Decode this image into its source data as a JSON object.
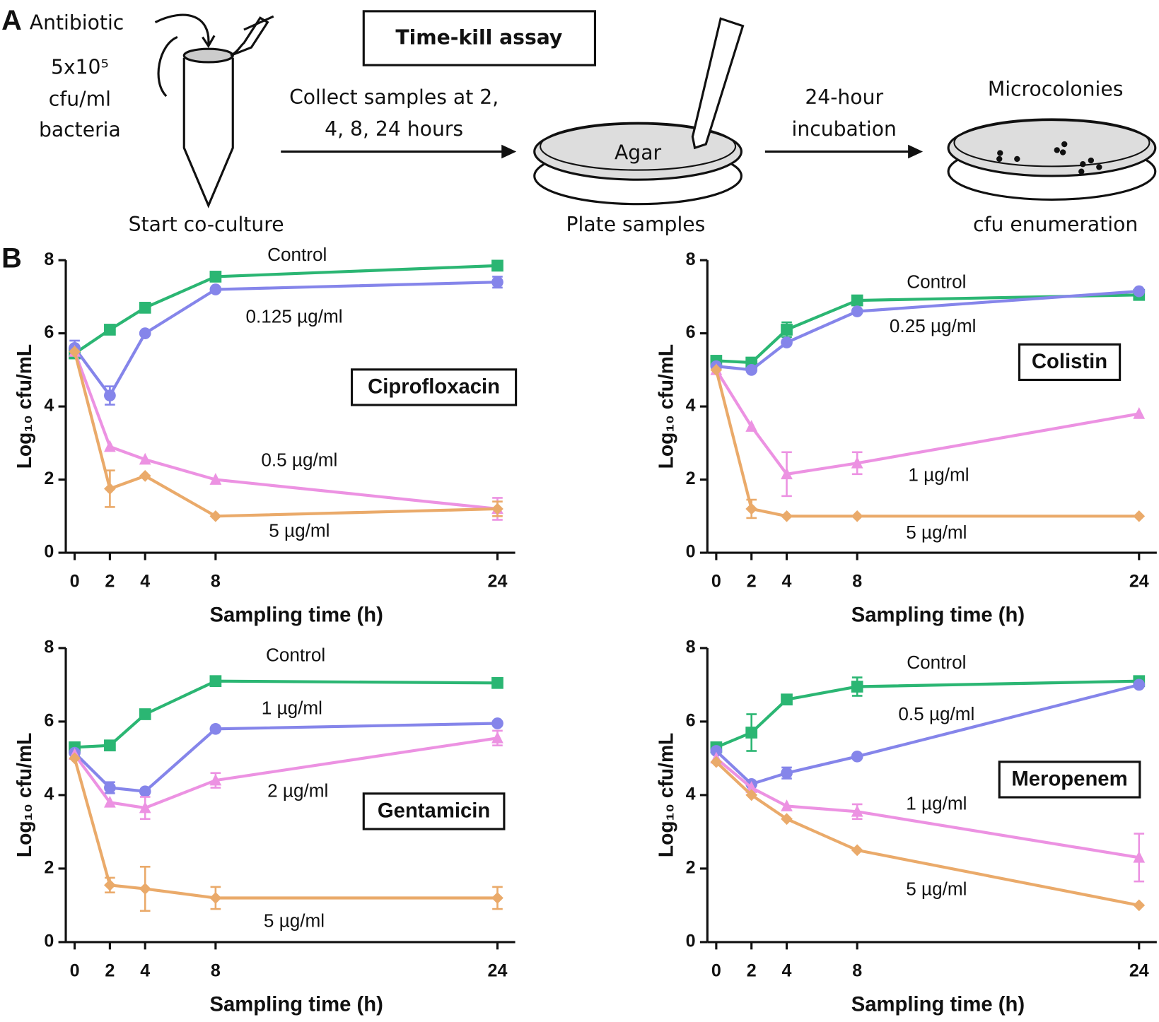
{
  "panel_a": {
    "label": "A",
    "antibiotic": "Antibiotic",
    "inoculum": [
      "5x10⁵",
      "cfu/ml",
      "bacteria"
    ],
    "box_title": "Time-kill assay",
    "step1": [
      "Collect samples at 2,",
      "4, 8, 24 hours"
    ],
    "agar": "Agar",
    "step2": [
      "24-hour",
      "incubation"
    ],
    "microcolonies": "Microcolonies",
    "captions": [
      "Start co-culture",
      "Plate samples",
      "cfu enumeration"
    ]
  },
  "panel_b": {
    "label": "B"
  },
  "chart_data": [
    {
      "type": "line",
      "annotation": "Ciprofloxacin",
      "xlabel": "Sampling time (h)",
      "ylabel": "Log₁₀ cfu/mL",
      "x": [
        0,
        2,
        4,
        8,
        24
      ],
      "xlim": [
        0,
        24
      ],
      "xticks": [
        0,
        2,
        4,
        8,
        24
      ],
      "ylim": [
        0,
        8
      ],
      "yticks": [
        0,
        2,
        4,
        6,
        8
      ],
      "series": [
        {
          "name": "Control",
          "color": "#2bb673",
          "marker": "square",
          "values": [
            5.45,
            6.1,
            6.7,
            7.55,
            7.85
          ],
          "errors": [
            null,
            null,
            null,
            null,
            null
          ]
        },
        {
          "name": "0.125 µg/ml",
          "color": "#8585ea",
          "marker": "circle",
          "values": [
            5.6,
            4.3,
            6.0,
            7.2,
            7.4
          ],
          "errors": [
            0.2,
            0.25,
            null,
            null,
            0.15
          ]
        },
        {
          "name": "0.5 µg/ml",
          "color": "#ec92e2",
          "marker": "triangle",
          "values": [
            5.5,
            2.9,
            2.55,
            2.0,
            1.2
          ],
          "errors": [
            null,
            null,
            null,
            null,
            0.3
          ]
        },
        {
          "name": "5 µg/ml",
          "color": "#eaaa6a",
          "marker": "diamond",
          "values": [
            5.5,
            1.75,
            2.1,
            1.0,
            1.2
          ],
          "errors": [
            null,
            0.5,
            null,
            null,
            0.2
          ]
        }
      ]
    },
    {
      "type": "line",
      "annotation": "Colistin",
      "xlabel": "Sampling time (h)",
      "ylabel": "Log₁₀ cfu/mL",
      "x": [
        0,
        2,
        4,
        8,
        24
      ],
      "xlim": [
        0,
        24
      ],
      "xticks": [
        0,
        2,
        4,
        8,
        24
      ],
      "ylim": [
        0,
        8
      ],
      "yticks": [
        0,
        2,
        4,
        6,
        8
      ],
      "series": [
        {
          "name": "Control",
          "color": "#2bb673",
          "marker": "square",
          "values": [
            5.25,
            5.2,
            6.1,
            6.9,
            7.05
          ],
          "errors": [
            null,
            null,
            0.2,
            null,
            null
          ]
        },
        {
          "name": "0.25 µg/ml",
          "color": "#8585ea",
          "marker": "circle",
          "values": [
            5.1,
            5.0,
            5.75,
            6.6,
            7.15
          ],
          "errors": [
            null,
            null,
            null,
            null,
            null
          ]
        },
        {
          "name": "1 µg/ml",
          "color": "#ec92e2",
          "marker": "triangle",
          "values": [
            5.0,
            3.45,
            2.15,
            2.45,
            3.8
          ],
          "errors": [
            null,
            null,
            0.6,
            0.3,
            null
          ]
        },
        {
          "name": "5 µg/ml",
          "color": "#eaaa6a",
          "marker": "diamond",
          "values": [
            5.0,
            1.2,
            1.0,
            1.0,
            1.0
          ],
          "errors": [
            null,
            0.25,
            null,
            null,
            null
          ]
        }
      ]
    },
    {
      "type": "line",
      "annotation": "Gentamicin",
      "xlabel": "Sampling time (h)",
      "ylabel": "Log₁₀ cfu/mL",
      "x": [
        0,
        2,
        4,
        8,
        24
      ],
      "xlim": [
        0,
        24
      ],
      "xticks": [
        0,
        2,
        4,
        8,
        24
      ],
      "ylim": [
        0,
        8
      ],
      "yticks": [
        0,
        2,
        4,
        6,
        8
      ],
      "series": [
        {
          "name": "Control",
          "color": "#2bb673",
          "marker": "square",
          "values": [
            5.3,
            5.35,
            6.2,
            7.1,
            7.05
          ],
          "errors": [
            null,
            null,
            null,
            null,
            null
          ]
        },
        {
          "name": "1 µg/ml",
          "color": "#8585ea",
          "marker": "circle",
          "values": [
            5.15,
            4.2,
            4.1,
            5.8,
            5.95
          ],
          "errors": [
            null,
            0.15,
            null,
            null,
            null
          ]
        },
        {
          "name": "2 µg/ml",
          "color": "#ec92e2",
          "marker": "triangle",
          "values": [
            5.1,
            3.8,
            3.65,
            4.4,
            5.55
          ],
          "errors": [
            null,
            null,
            0.3,
            0.2,
            0.2
          ]
        },
        {
          "name": "5 µg/ml",
          "color": "#eaaa6a",
          "marker": "diamond",
          "values": [
            5.0,
            1.55,
            1.45,
            1.2,
            1.2
          ],
          "errors": [
            null,
            0.2,
            0.6,
            0.3,
            0.3
          ]
        }
      ]
    },
    {
      "type": "line",
      "annotation": "Meropenem",
      "xlabel": "Sampling time (h)",
      "ylabel": "Log₁₀ cfu/mL",
      "x": [
        0,
        2,
        4,
        8,
        24
      ],
      "xlim": [
        0,
        24
      ],
      "xticks": [
        0,
        2,
        4,
        8,
        24
      ],
      "ylim": [
        0,
        8
      ],
      "yticks": [
        0,
        2,
        4,
        6,
        8
      ],
      "series": [
        {
          "name": "Control",
          "color": "#2bb673",
          "marker": "square",
          "values": [
            5.3,
            5.7,
            6.6,
            6.95,
            7.1
          ],
          "errors": [
            null,
            0.5,
            null,
            0.25,
            null
          ]
        },
        {
          "name": "0.5 µg/ml",
          "color": "#8585ea",
          "marker": "circle",
          "values": [
            5.2,
            4.3,
            4.6,
            5.05,
            7.0
          ],
          "errors": [
            null,
            null,
            0.15,
            null,
            null
          ]
        },
        {
          "name": "1 µg/ml",
          "color": "#ec92e2",
          "marker": "triangle",
          "values": [
            5.0,
            4.2,
            3.7,
            3.55,
            2.3
          ],
          "errors": [
            null,
            null,
            null,
            0.2,
            0.65
          ]
        },
        {
          "name": "5 µg/ml",
          "color": "#eaaa6a",
          "marker": "diamond",
          "values": [
            4.9,
            4.0,
            3.35,
            2.5,
            1.0
          ],
          "errors": [
            null,
            null,
            null,
            null,
            null
          ]
        }
      ]
    }
  ]
}
